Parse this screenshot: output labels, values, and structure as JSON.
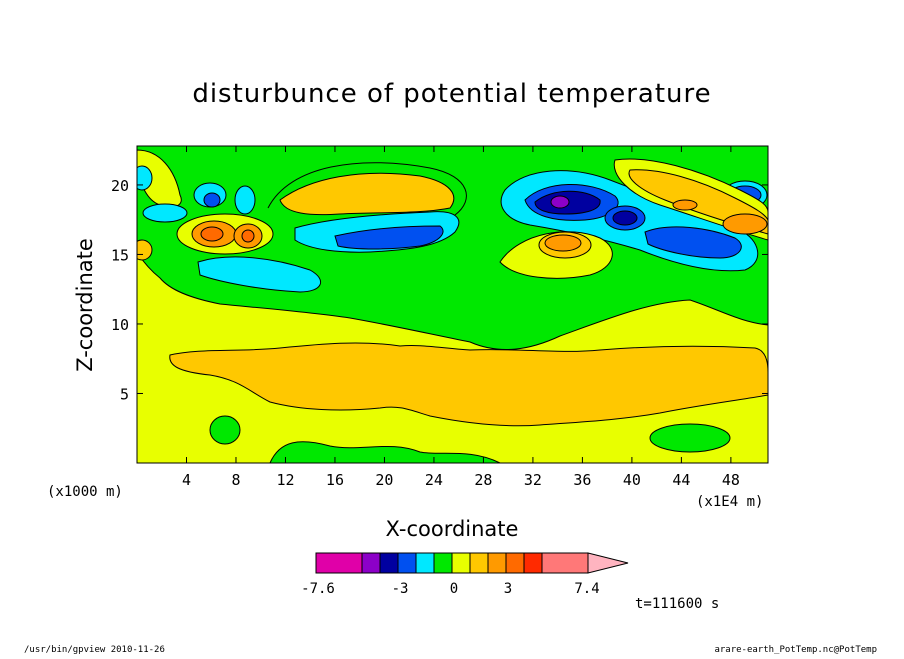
{
  "chart_data": {
    "type": "heatmap",
    "title": "disturbunce of potential temperature",
    "xlabel": "X-coordinate",
    "ylabel": "Z-coordinate",
    "x_unit_left": "(x1000 m)",
    "x_unit_right": "(x1E4 m)",
    "x_ticks": [
      "4",
      "8",
      "12",
      "16",
      "20",
      "24",
      "28",
      "32",
      "36",
      "40",
      "44",
      "48"
    ],
    "y_ticks": [
      "5",
      "10",
      "15",
      "20"
    ],
    "xlim": [
      0,
      51
    ],
    "ylim": [
      0,
      22.8
    ],
    "grid": false,
    "colorbar": {
      "tick_labels": [
        "-7.6",
        "-3",
        "0",
        "3",
        "7.4"
      ],
      "colors": [
        "#e000a8",
        "#8c00c8",
        "#0000a0",
        "#0050f0",
        "#00e8ff",
        "#00e800",
        "#e8ff00",
        "#ffc800",
        "#ff9a00",
        "#ff6a00",
        "#ff2a00",
        "#ff7878",
        "#ffb4c0"
      ]
    },
    "time_label": "t=111600 s"
  },
  "footer": {
    "left": "/usr/bin/gpview   2010-11-26",
    "right": "arare-earth_PotTemp.nc@PotTemp"
  }
}
